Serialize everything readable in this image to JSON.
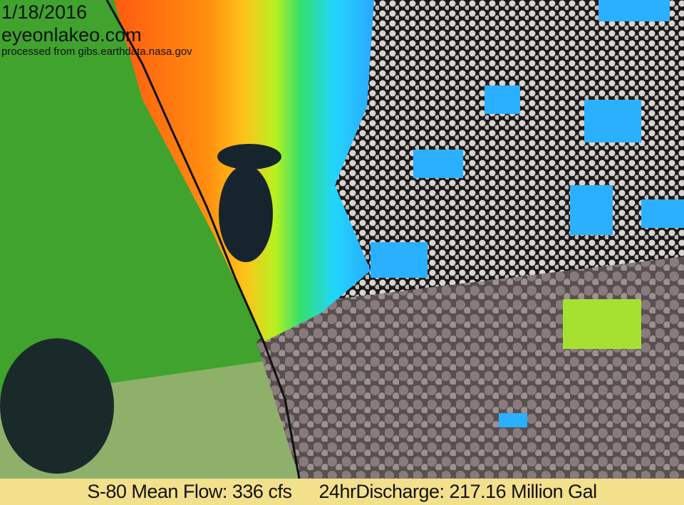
{
  "overlay": {
    "date": "1/18/2016",
    "site": "eyeonlakeo.com",
    "processed": "processed from gibs.earthdata.nasa.gov"
  },
  "footer": {
    "flow": "S-80 Mean Flow: 336 cfs",
    "discharge": "24hrDischarge: 217.16 Million Gal",
    "background_color": "#f3e08c"
  },
  "colors": {
    "land": "#3fa32e",
    "plume_high": "#ff5a10",
    "plume_mid": "#ffc21a",
    "plume_low": "#22d4ff",
    "clouds": "#d8d4d0"
  }
}
